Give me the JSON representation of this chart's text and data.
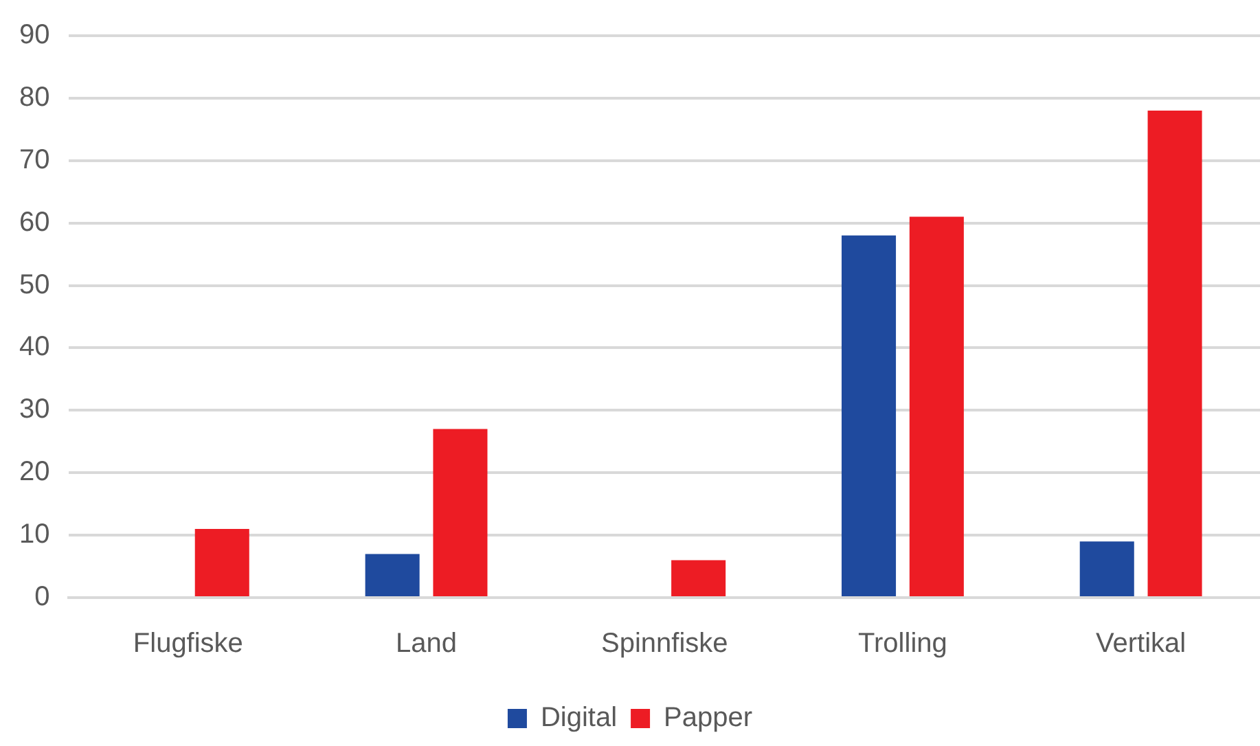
{
  "chart_data": {
    "type": "bar",
    "categories": [
      "Flugfiske",
      "Land",
      "Spinnfiske",
      "Trolling",
      "Vertikal"
    ],
    "series": [
      {
        "name": "Digital",
        "color": "#1f4a9e",
        "values": [
          null,
          7,
          null,
          58,
          9
        ]
      },
      {
        "name": "Papper",
        "color": "#ed1c24",
        "values": [
          11,
          27,
          6,
          61,
          78
        ]
      }
    ],
    "ylim": [
      0,
      90
    ],
    "yticks": [
      0,
      10,
      20,
      30,
      40,
      50,
      60,
      70,
      80,
      90
    ],
    "grid": "y",
    "legend": "bottom"
  }
}
